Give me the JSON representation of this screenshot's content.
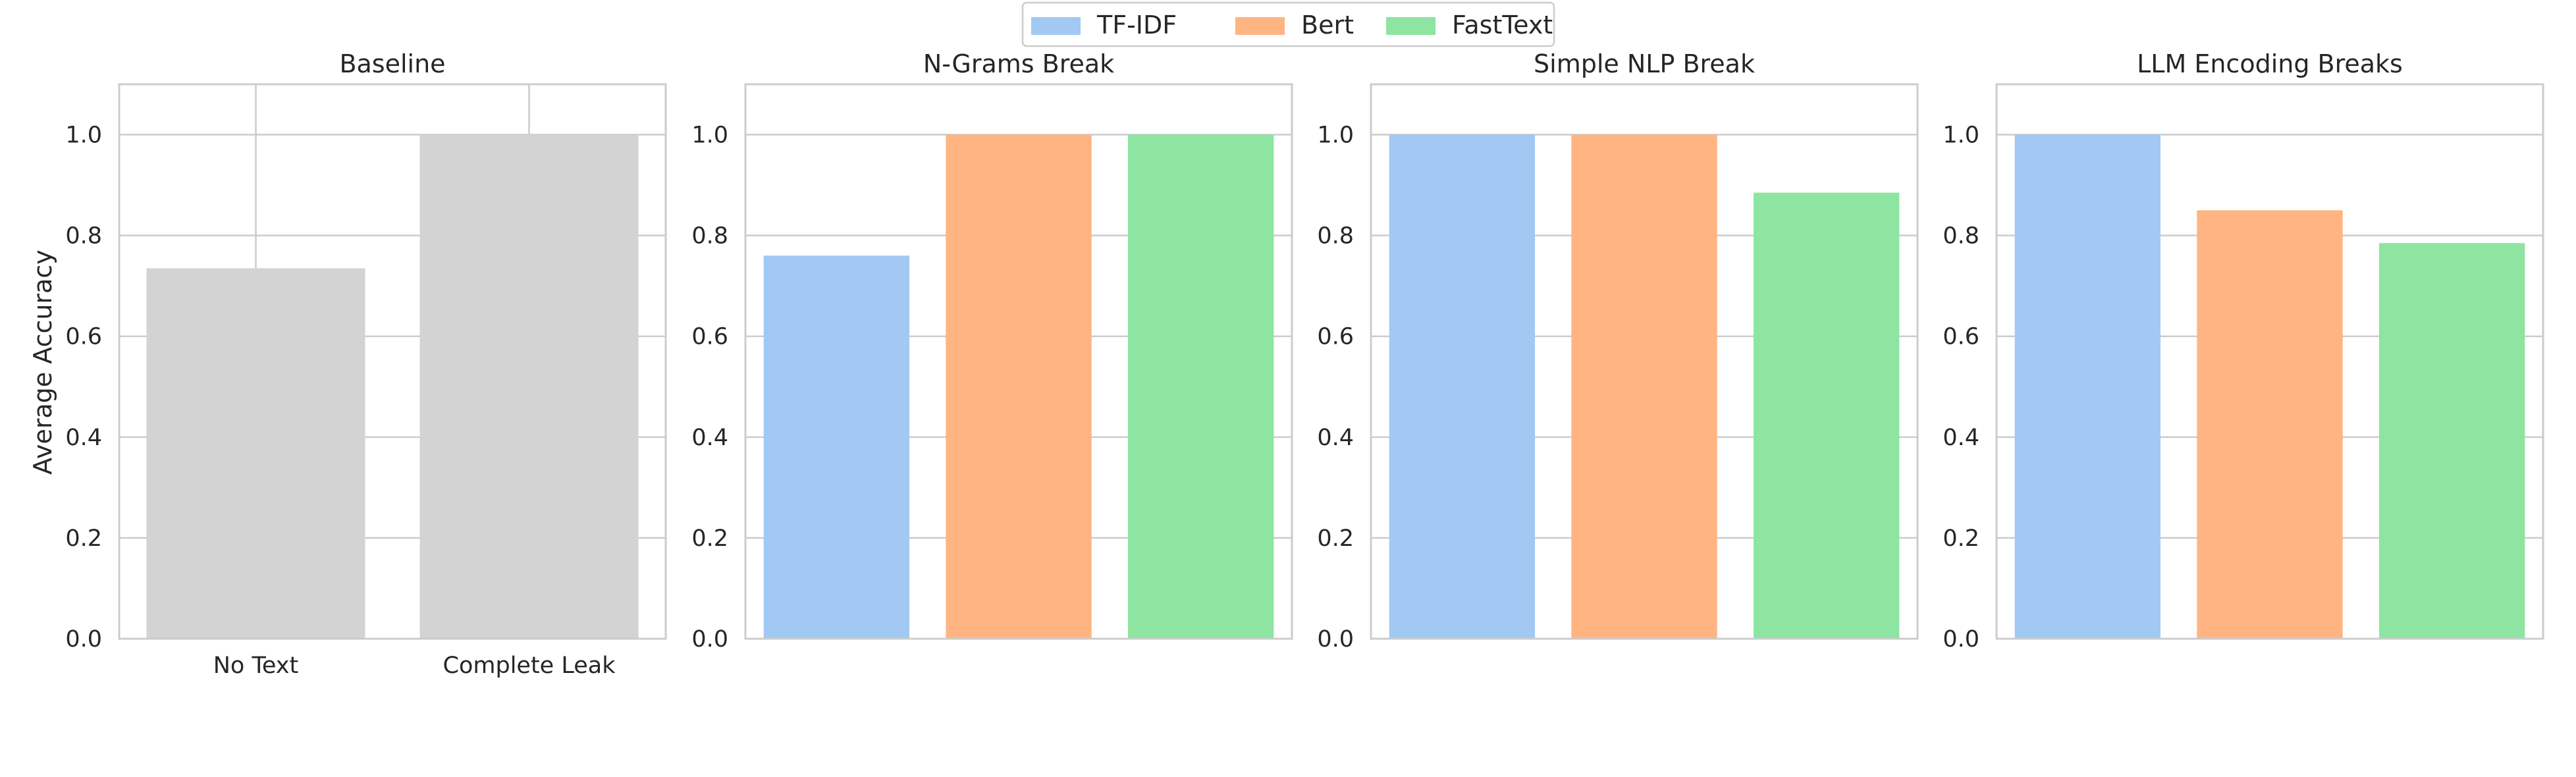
{
  "chart_data": {
    "type": "bar",
    "ylabel": "Average Accuracy",
    "ylim": [
      0,
      1.1
    ],
    "yticks": [
      "0.0",
      "0.2",
      "0.4",
      "0.6",
      "0.8",
      "1.0"
    ],
    "grid": true,
    "legend": {
      "placement": "top-center",
      "entries": [
        {
          "name": "TF-IDF",
          "color": "#a1c9f4"
        },
        {
          "name": "Bert",
          "color": "#ffb482"
        },
        {
          "name": "FastText",
          "color": "#8de5a1"
        }
      ]
    },
    "panels": [
      {
        "title": "Baseline",
        "categories": [
          "No Text",
          "Complete Leak"
        ],
        "values": [
          0.735,
          1.0
        ],
        "color": "#d3d3d3",
        "show_category_labels": true
      },
      {
        "title": "N-Grams Break",
        "series": [
          {
            "name": "TF-IDF",
            "value": 0.76
          },
          {
            "name": "Bert",
            "value": 1.0
          },
          {
            "name": "FastText",
            "value": 1.0
          }
        ]
      },
      {
        "title": "Simple NLP Break",
        "series": [
          {
            "name": "TF-IDF",
            "value": 1.0
          },
          {
            "name": "Bert",
            "value": 1.0
          },
          {
            "name": "FastText",
            "value": 0.885
          }
        ]
      },
      {
        "title": "LLM Encoding Breaks",
        "series": [
          {
            "name": "TF-IDF",
            "value": 1.0
          },
          {
            "name": "Bert",
            "value": 0.85
          },
          {
            "name": "FastText",
            "value": 0.785
          }
        ]
      }
    ]
  }
}
